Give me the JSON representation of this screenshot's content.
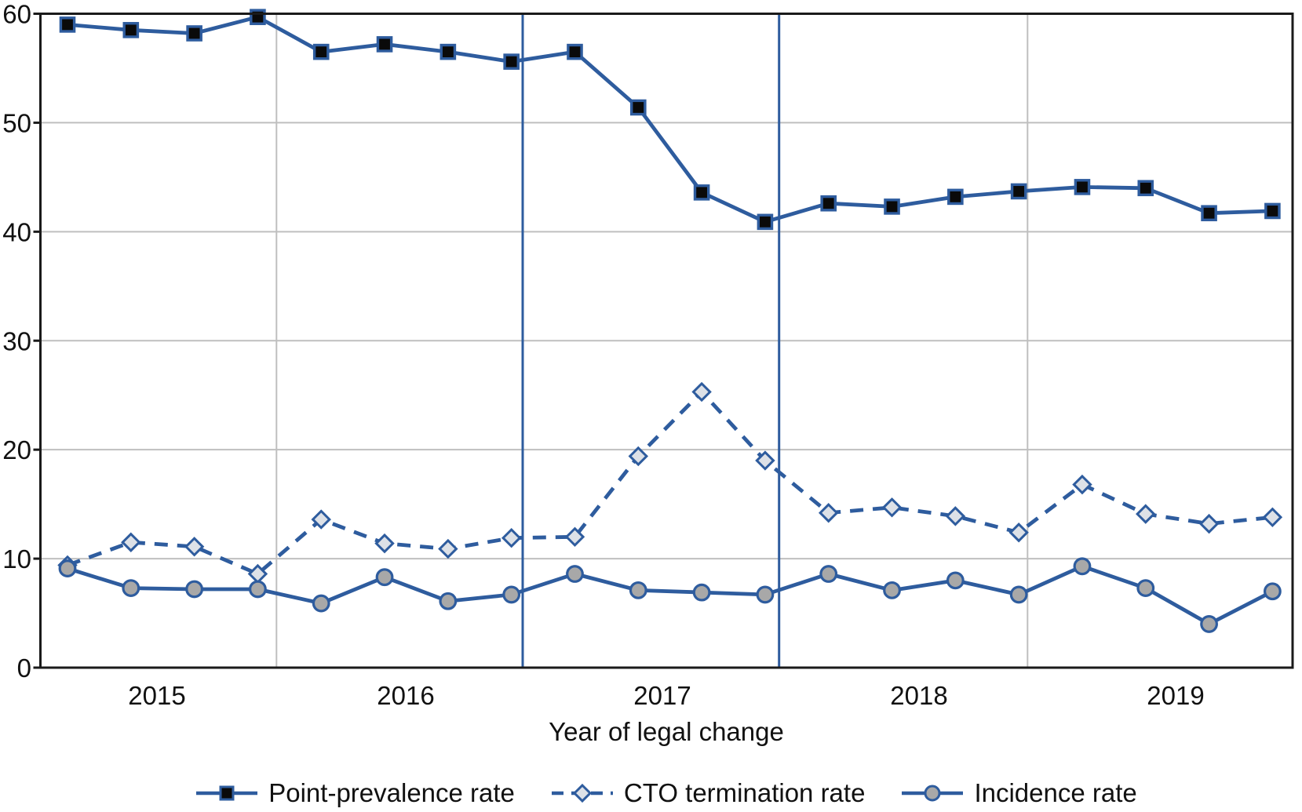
{
  "figure": {
    "background": "#ffffff"
  },
  "colors": {
    "accent_blue": "#2e5c9e",
    "axis_black": "#1a1a1a",
    "gridline_gray": "#bfbfbf",
    "text_black": "#111111",
    "square_fill": "#0a0a0a",
    "diamond_fill": "#dde1e7",
    "circle_fill": "#a8a8a8"
  },
  "chart_data": {
    "type": "line",
    "title": "",
    "xlabel": "Year of legal change",
    "ylabel": "",
    "ylim": [
      0,
      60
    ],
    "yticks": [
      0,
      10,
      20,
      30,
      40,
      50,
      60
    ],
    "grid": "horizontal gray lines at each y tick; gray vertical separators after 2015 and 2018; blue vertical reference lines after 2016 and 2017; full black border around plot",
    "legend_position": "bottom center",
    "years": [
      "2015",
      "2016",
      "2017",
      "2018",
      "2019"
    ],
    "points_per_year": 4,
    "x_unit": "quarter",
    "vertical_lines": [
      {
        "after_year_index": 0,
        "style": "grid"
      },
      {
        "after_year_index": 1,
        "style": "accent"
      },
      {
        "after_year_index": 2,
        "style": "accent"
      },
      {
        "after_year_index": 3,
        "style": "grid"
      }
    ],
    "series": [
      {
        "name": "Point-prevalence rate",
        "marker": "square",
        "line_style": "solid",
        "values": [
          59.0,
          58.5,
          58.2,
          59.7,
          56.5,
          57.2,
          56.5,
          55.6,
          56.5,
          51.4,
          43.6,
          40.9,
          42.6,
          42.3,
          43.2,
          43.7,
          44.1,
          44.0,
          41.7,
          41.9
        ]
      },
      {
        "name": "CTO termination rate",
        "marker": "diamond",
        "line_style": "dashed",
        "values": [
          9.4,
          11.5,
          11.1,
          8.6,
          13.6,
          11.4,
          10.9,
          11.9,
          12.0,
          19.4,
          25.3,
          19.0,
          14.2,
          14.7,
          13.9,
          12.4,
          16.8,
          14.1,
          13.2,
          13.8
        ]
      },
      {
        "name": "Incidence rate",
        "marker": "circle",
        "line_style": "solid",
        "values": [
          9.1,
          7.3,
          7.2,
          7.2,
          5.9,
          8.3,
          6.1,
          6.7,
          8.6,
          7.1,
          6.9,
          6.7,
          8.6,
          7.1,
          8.0,
          6.7,
          9.3,
          7.3,
          4.0,
          7.0
        ]
      }
    ]
  }
}
